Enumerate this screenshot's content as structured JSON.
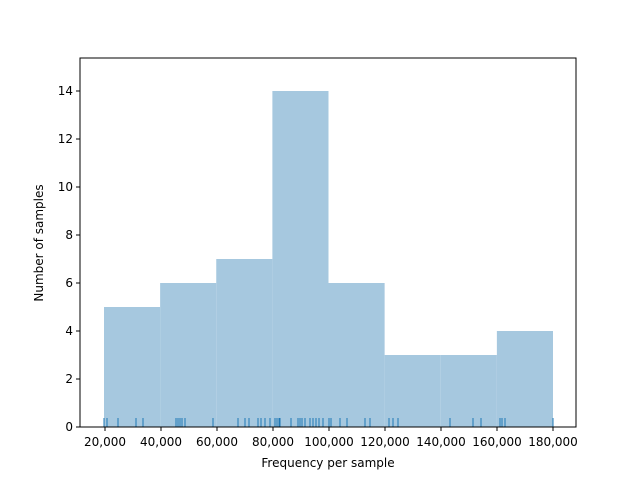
{
  "chart_data": {
    "type": "histogram",
    "xlabel": "Frequency per sample",
    "ylabel": "Number of samples",
    "bins": [
      19643,
      39688,
      59732,
      79777,
      99821,
      119866,
      139911,
      159955,
      180000
    ],
    "values": [
      5,
      6,
      7,
      14,
      6,
      3,
      3,
      4
    ],
    "color": "#a6c8df",
    "rug": [
      19643,
      20714,
      24643,
      31071,
      33571,
      45357,
      46071,
      46786,
      47500,
      48571,
      58571,
      67500,
      70000,
      71429,
      74643,
      75714,
      77143,
      78929,
      80714,
      81429,
      82143,
      82500,
      86429,
      88929,
      89643,
      90357,
      91429,
      93214,
      94286,
      95357,
      96429,
      97857,
      100000,
      100714,
      103929,
      106429,
      112857,
      114643,
      121429,
      122857,
      124643,
      143214,
      151429,
      154286,
      161071,
      161786,
      162857,
      180000
    ],
    "rug_color": "#1f77b4",
    "xlim": [
      11071,
      188214
    ],
    "ylim": [
      0,
      15.375
    ],
    "xticks": [
      {
        "value": 20000,
        "label": "20,000"
      },
      {
        "value": 40000,
        "label": "40,000"
      },
      {
        "value": 60000,
        "label": "60,000"
      },
      {
        "value": 80000,
        "label": "80,000"
      },
      {
        "value": 100000,
        "label": "100,000"
      },
      {
        "value": 120000,
        "label": "120,000"
      },
      {
        "value": 140000,
        "label": "140,000"
      },
      {
        "value": 160000,
        "label": "160,000"
      },
      {
        "value": 180000,
        "label": "180,000"
      }
    ],
    "yticks": [
      0,
      2,
      4,
      6,
      8,
      10,
      12,
      14
    ]
  }
}
